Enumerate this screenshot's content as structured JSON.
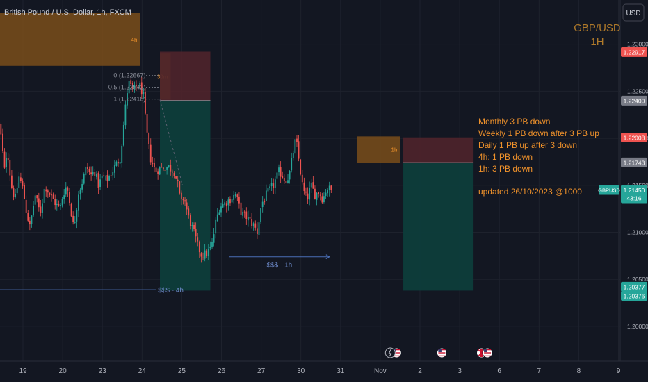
{
  "header": {
    "symbol_title": "British Pound / U.S. Dollar, 1h, FXCM"
  },
  "currency_button": "USD",
  "watermark": {
    "line1": "GBP/USD",
    "line2": "1H"
  },
  "notes": {
    "lines": [
      "Monthly 3 PB down",
      "Weekly 1 PB down after 3 PB up",
      "Daily 1 PB up after 3 down",
      "4h: 1 PB down",
      "1h: 3 PB down"
    ],
    "updated": "updated 26/10/2023 @1000"
  },
  "colors": {
    "background": "#131722",
    "up": "#26a69a",
    "down": "#ef5350",
    "orange_text": "#f0922b",
    "zone_orange": "#7a4e1a",
    "zone_red": "#4f232b",
    "zone_teal": "#0d3d3b",
    "liquidity_line": "#4b6fb6"
  },
  "chart_data": {
    "type": "candlestick",
    "title": "British Pound / U.S. Dollar, 1h, FXCM",
    "symbol": "GBPUSD",
    "timeframe": "1h",
    "ylim": [
      1.1963,
      1.2347
    ],
    "y_ticks": [
      "1.23000",
      "1.22500",
      "1.22000",
      "1.21500",
      "1.21000",
      "1.20500",
      "1.20000"
    ],
    "x_ticks": [
      {
        "label": "19",
        "x": 0
      },
      {
        "label": "20",
        "x": 1
      },
      {
        "label": "23",
        "x": 2
      },
      {
        "label": "24",
        "x": 3
      },
      {
        "label": "25",
        "x": 4
      },
      {
        "label": "26",
        "x": 5
      },
      {
        "label": "27",
        "x": 6
      },
      {
        "label": "30",
        "x": 7
      },
      {
        "label": "31",
        "x": 8
      },
      {
        "label": "Nov",
        "x": 9
      },
      {
        "label": "2",
        "x": 10
      },
      {
        "label": "3",
        "x": 11
      },
      {
        "label": "6",
        "x": 12
      },
      {
        "label": "7",
        "x": 13
      },
      {
        "label": "8",
        "x": 14
      },
      {
        "label": "9",
        "x": 15
      }
    ],
    "price_path": [
      {
        "x": -0.6,
        "y": 1.2225
      },
      {
        "x": -0.5,
        "y": 1.22
      },
      {
        "x": -0.42,
        "y": 1.2165
      },
      {
        "x": -0.35,
        "y": 1.219
      },
      {
        "x": -0.25,
        "y": 1.215
      },
      {
        "x": -0.15,
        "y": 1.2135
      },
      {
        "x": -0.05,
        "y": 1.216
      },
      {
        "x": 0.05,
        "y": 1.2145
      },
      {
        "x": 0.12,
        "y": 1.2125
      },
      {
        "x": 0.22,
        "y": 1.2105
      },
      {
        "x": 0.35,
        "y": 1.214
      },
      {
        "x": 0.48,
        "y": 1.212
      },
      {
        "x": 0.6,
        "y": 1.215
      },
      {
        "x": 0.75,
        "y": 1.2138
      },
      {
        "x": 0.88,
        "y": 1.213
      },
      {
        "x": 0.98,
        "y": 1.2125
      },
      {
        "x": 1.05,
        "y": 1.214
      },
      {
        "x": 1.15,
        "y": 1.215
      },
      {
        "x": 1.25,
        "y": 1.2125
      },
      {
        "x": 1.32,
        "y": 1.2105
      },
      {
        "x": 1.38,
        "y": 1.212
      },
      {
        "x": 1.44,
        "y": 1.2142
      },
      {
        "x": 1.55,
        "y": 1.2155
      },
      {
        "x": 1.65,
        "y": 1.217
      },
      {
        "x": 1.75,
        "y": 1.216
      },
      {
        "x": 1.85,
        "y": 1.2165
      },
      {
        "x": 1.95,
        "y": 1.215
      },
      {
        "x": 2.05,
        "y": 1.216
      },
      {
        "x": 2.15,
        "y": 1.2155
      },
      {
        "x": 2.3,
        "y": 1.2165
      },
      {
        "x": 2.5,
        "y": 1.218
      },
      {
        "x": 2.62,
        "y": 1.223
      },
      {
        "x": 2.7,
        "y": 1.226
      },
      {
        "x": 2.82,
        "y": 1.225
      },
      {
        "x": 2.9,
        "y": 1.2255
      },
      {
        "x": 3.0,
        "y": 1.2255
      },
      {
        "x": 3.08,
        "y": 1.2245
      },
      {
        "x": 3.15,
        "y": 1.221
      },
      {
        "x": 3.25,
        "y": 1.218
      },
      {
        "x": 3.38,
        "y": 1.2165
      },
      {
        "x": 3.5,
        "y": 1.2168
      },
      {
        "x": 3.7,
        "y": 1.217
      },
      {
        "x": 3.85,
        "y": 1.2165
      },
      {
        "x": 3.95,
        "y": 1.215
      },
      {
        "x": 4.02,
        "y": 1.213
      },
      {
        "x": 4.1,
        "y": 1.2138
      },
      {
        "x": 4.22,
        "y": 1.2115
      },
      {
        "x": 4.35,
        "y": 1.21
      },
      {
        "x": 4.45,
        "y": 1.2085
      },
      {
        "x": 4.55,
        "y": 1.2075
      },
      {
        "x": 4.68,
        "y": 1.2078
      },
      {
        "x": 4.8,
        "y": 1.2085
      },
      {
        "x": 4.9,
        "y": 1.211
      },
      {
        "x": 5.0,
        "y": 1.2128
      },
      {
        "x": 5.1,
        "y": 1.213
      },
      {
        "x": 5.25,
        "y": 1.2135
      },
      {
        "x": 5.4,
        "y": 1.214
      },
      {
        "x": 5.55,
        "y": 1.212
      },
      {
        "x": 5.7,
        "y": 1.2115
      },
      {
        "x": 5.85,
        "y": 1.2108
      },
      {
        "x": 5.95,
        "y": 1.21
      },
      {
        "x": 6.05,
        "y": 1.213
      },
      {
        "x": 6.18,
        "y": 1.214
      },
      {
        "x": 6.35,
        "y": 1.215
      },
      {
        "x": 6.5,
        "y": 1.2165
      },
      {
        "x": 6.65,
        "y": 1.2155
      },
      {
        "x": 6.75,
        "y": 1.216
      },
      {
        "x": 6.85,
        "y": 1.2185
      },
      {
        "x": 6.92,
        "y": 1.22
      },
      {
        "x": 7.0,
        "y": 1.2175
      },
      {
        "x": 7.1,
        "y": 1.2145
      },
      {
        "x": 7.2,
        "y": 1.2135
      },
      {
        "x": 7.3,
        "y": 1.215
      },
      {
        "x": 7.4,
        "y": 1.214
      },
      {
        "x": 7.5,
        "y": 1.2143
      },
      {
        "x": 7.6,
        "y": 1.2135
      },
      {
        "x": 7.7,
        "y": 1.2148
      },
      {
        "x": 7.78,
        "y": 1.2145
      }
    ],
    "zones": [
      {
        "name": "4h",
        "kind": "supply",
        "x0": -0.6,
        "x1": 2.95,
        "y0": 1.2277,
        "y1": 1.2333
      },
      {
        "name": "30m",
        "kind": "supply",
        "x0": 3.45,
        "x1": 3.72,
        "y0": 1.2241,
        "y1": 1.229
      },
      {
        "name": "1h",
        "kind": "supply",
        "x0": 8.42,
        "x1": 9.5,
        "y0": 1.2174,
        "y1": 1.2202
      },
      {
        "name": "short-4h-stop",
        "kind": "stop",
        "x0": 3.45,
        "x1": 4.72,
        "y0": 1.224,
        "y1": 1.2292
      },
      {
        "name": "short-4h-target",
        "kind": "target",
        "x0": 3.45,
        "x1": 4.72,
        "y0": 1.2038,
        "y1": 1.224
      },
      {
        "name": "short-1h-stop",
        "kind": "stop",
        "x0": 9.58,
        "x1": 11.35,
        "y0": 1.2174,
        "y1": 1.2201
      },
      {
        "name": "short-1h-target",
        "kind": "target",
        "x0": 9.58,
        "x1": 11.35,
        "y0": 1.2038,
        "y1": 1.2174
      }
    ],
    "fib_levels": [
      {
        "label": "0 (1.22667)",
        "y": 1.22667
      },
      {
        "label": "0.5 (1.22542)",
        "y": 1.22542
      },
      {
        "label": "1 (1.22416)",
        "y": 1.22416
      }
    ],
    "liquidity_lines": [
      {
        "label": "$$$ - 4h",
        "y": 1.2039,
        "x0": -0.6,
        "x1": 3.35
      },
      {
        "label": "$$$ - 1h",
        "y": 1.2074,
        "x0": 5.2,
        "x1": 7.72
      }
    ],
    "price_labels": [
      {
        "value": "1.22917",
        "color": "#ef5350"
      },
      {
        "value": "1.22400",
        "color": "#787b86"
      },
      {
        "value": "1.22008",
        "color": "#ef5350"
      },
      {
        "value": "1.21743",
        "color": "#787b86"
      },
      {
        "value": "1.21450",
        "color": "#26a69a",
        "countdown": "43:16",
        "tag": "GBPUSD"
      },
      {
        "value": "1.20377",
        "color": "#26a69a"
      },
      {
        "value": "1.20376",
        "color": "#26a69a"
      }
    ],
    "current_price": 1.2145,
    "countdown": "43:16",
    "event_icons": [
      {
        "name": "us-event",
        "x": 9.55
      },
      {
        "name": "us-event",
        "x": 10.55
      },
      {
        "name": "uk-event",
        "x": 11.55
      },
      {
        "name": "us-event",
        "x": 11.7
      }
    ]
  }
}
